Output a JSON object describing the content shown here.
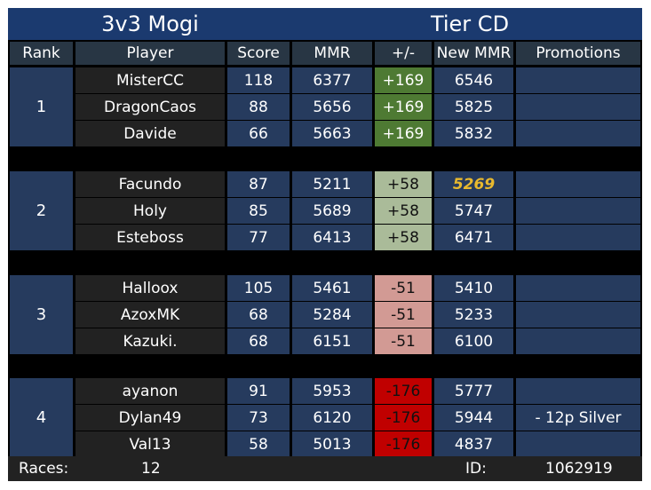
{
  "title": {
    "left": "3v3 Mogi",
    "right": "Tier CD"
  },
  "headers": [
    "Rank",
    "Player",
    "Score",
    "MMR",
    "+/-",
    "New MMR",
    "Promotions"
  ],
  "teams": [
    {
      "rank": "1",
      "change_level": "pos-strong",
      "players": [
        {
          "name": "MisterCC",
          "score": "118",
          "mmr": "6377",
          "delta": "+169",
          "new_mmr": "6546",
          "promotion": ""
        },
        {
          "name": "DragonCaos",
          "score": "88",
          "mmr": "5656",
          "delta": "+169",
          "new_mmr": "5825",
          "promotion": ""
        },
        {
          "name": "Davide",
          "score": "66",
          "mmr": "5663",
          "delta": "+169",
          "new_mmr": "5832",
          "promotion": ""
        }
      ]
    },
    {
      "rank": "2",
      "change_level": "pos-weak",
      "players": [
        {
          "name": "Facundo",
          "score": "87",
          "mmr": "5211",
          "delta": "+58",
          "new_mmr": "5269",
          "promotion": "",
          "highlight": true
        },
        {
          "name": "Holy",
          "score": "85",
          "mmr": "5689",
          "delta": "+58",
          "new_mmr": "5747",
          "promotion": ""
        },
        {
          "name": "Esteboss",
          "score": "77",
          "mmr": "6413",
          "delta": "+58",
          "new_mmr": "6471",
          "promotion": ""
        }
      ]
    },
    {
      "rank": "3",
      "change_level": "neg-weak",
      "players": [
        {
          "name": "Halloox",
          "score": "105",
          "mmr": "5461",
          "delta": "-51",
          "new_mmr": "5410",
          "promotion": ""
        },
        {
          "name": "AzoxMK",
          "score": "68",
          "mmr": "5284",
          "delta": "-51",
          "new_mmr": "5233",
          "promotion": ""
        },
        {
          "name": "Kazuki.",
          "score": "68",
          "mmr": "6151",
          "delta": "-51",
          "new_mmr": "6100",
          "promotion": ""
        }
      ]
    },
    {
      "rank": "4",
      "change_level": "neg-strong",
      "players": [
        {
          "name": "ayanon",
          "score": "91",
          "mmr": "5953",
          "delta": "-176",
          "new_mmr": "5777",
          "promotion": ""
        },
        {
          "name": "Dylan49",
          "score": "73",
          "mmr": "6120",
          "delta": "-176",
          "new_mmr": "5944",
          "promotion": "- 12p Silver"
        },
        {
          "name": "Val13",
          "score": "58",
          "mmr": "5013",
          "delta": "-176",
          "new_mmr": "4837",
          "promotion": ""
        }
      ]
    }
  ],
  "footer": {
    "races_label": "Races:",
    "races_value": "12",
    "id_label": "ID:",
    "id_value": "1062919"
  },
  "colors": {
    "title": "#1b3a6f",
    "header": "#283644",
    "name_cell": "#222222",
    "value_cell": "#263b5e",
    "gain_strong": "#4e7a33",
    "gain_weak": "#aabb99",
    "loss_weak": "#d29a94",
    "loss_strong": "#c00000",
    "highlight": "#e8b92e"
  }
}
